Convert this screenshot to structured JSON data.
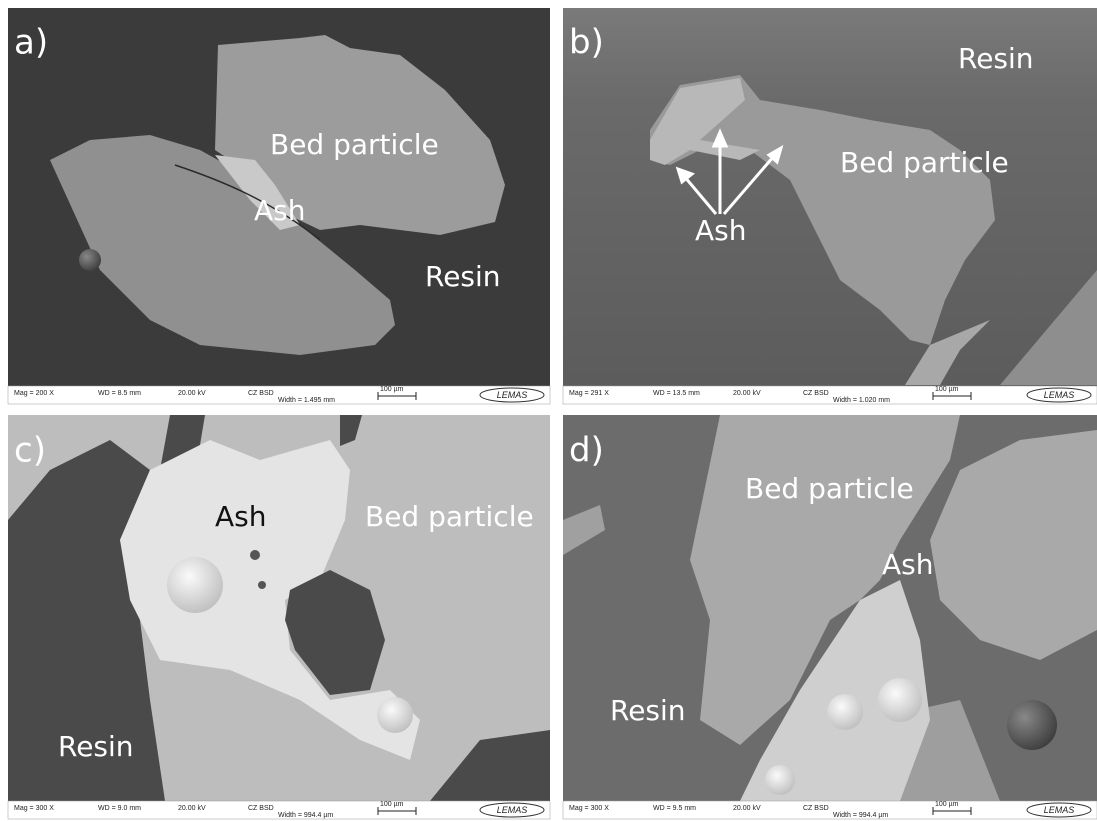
{
  "panels": [
    {
      "label": "a)",
      "annotations": [
        "Bed particle",
        "Ash",
        "Resin"
      ],
      "info": {
        "mag": "Mag =  200 X",
        "wd": "WD =  8.5 mm",
        "kv": "20.00 kV",
        "detector": "CZ BSD",
        "width": "Width = 1.495 mm",
        "scale": "100 µm",
        "logo": "LEMAS"
      }
    },
    {
      "label": "b)",
      "annotations": [
        "Resin",
        "Bed particle",
        "Ash"
      ],
      "info": {
        "mag": "Mag =  291 X",
        "wd": "WD = 13.5 mm",
        "kv": "20.00 kV",
        "detector": "CZ BSD",
        "width": "Width = 1.020 mm",
        "scale": "100 µm",
        "logo": "LEMAS"
      }
    },
    {
      "label": "c)",
      "annotations": [
        "Ash",
        "Bed particle",
        "Resin"
      ],
      "info": {
        "mag": "Mag =  300 X",
        "wd": "WD =  9.0 mm",
        "kv": "20.00 kV",
        "detector": "CZ BSD",
        "width": "Width = 994.4 µm",
        "scale": "100 µm",
        "logo": "LEMAS"
      }
    },
    {
      "label": "d)",
      "annotations": [
        "Bed particle",
        "Ash",
        "Resin"
      ],
      "info": {
        "mag": "Mag =  300 X",
        "wd": "WD =  9.5 mm",
        "kv": "20.00 kV",
        "detector": "CZ BSD",
        "width": "Width = 994.4 µm",
        "scale": "100 µm",
        "logo": "LEMAS"
      }
    }
  ]
}
